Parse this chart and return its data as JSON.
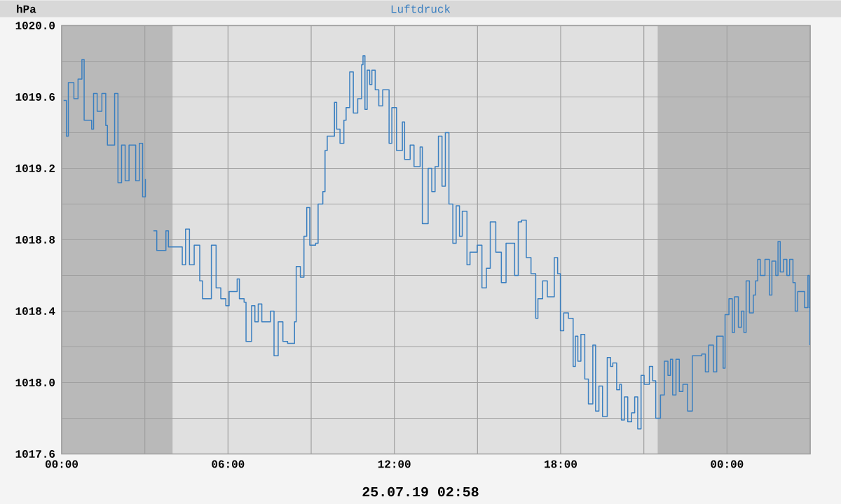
{
  "chart_data": {
    "type": "step",
    "title": "Luftdruck",
    "ylabel": "hPa",
    "annotations": [
      "25.07.19 02:58"
    ],
    "x": [
      0.07,
      0.17,
      0.24,
      0.44,
      0.59,
      0.73,
      0.81,
      1.08,
      1.15,
      1.28,
      1.45,
      1.59,
      1.65,
      1.91,
      2.03,
      2.16,
      2.29,
      2.43,
      2.67,
      2.8,
      2.92,
      3.02,
      3.15,
      3.31,
      3.43,
      3.76,
      3.85,
      4.19,
      4.35,
      4.47,
      4.61,
      4.78,
      4.98,
      5.08,
      5.4,
      5.57,
      5.74,
      5.92,
      6.04,
      6.33,
      6.41,
      6.58,
      6.65,
      6.85,
      6.97,
      7.09,
      7.22,
      7.53,
      7.66,
      7.81,
      7.98,
      8.15,
      8.4,
      8.46,
      8.61,
      8.74,
      8.84,
      8.95,
      9.16,
      9.25,
      9.42,
      9.5,
      9.58,
      9.72,
      9.84,
      9.92,
      10.04,
      10.18,
      10.26,
      10.39,
      10.52,
      10.68,
      10.82,
      10.87,
      10.94,
      11.02,
      11.11,
      11.19,
      11.31,
      11.44,
      11.58,
      11.81,
      11.91,
      12.08,
      12.29,
      12.37,
      12.57,
      12.71,
      12.93,
      13.01,
      13.22,
      13.35,
      13.47,
      13.59,
      13.72,
      13.84,
      13.97,
      14.11,
      14.23,
      14.35,
      14.45,
      14.62,
      14.73,
      14.99,
      15.16,
      15.32,
      15.46,
      15.66,
      15.86,
      16.03,
      16.34,
      16.47,
      16.59,
      16.76,
      16.93,
      17.1,
      17.18,
      17.35,
      17.52,
      17.77,
      17.89,
      17.99,
      18.11,
      18.28,
      18.45,
      18.53,
      18.62,
      18.73,
      18.87,
      19.0,
      19.16,
      19.26,
      19.38,
      19.51,
      19.68,
      19.8,
      19.88,
      20.02,
      20.13,
      20.19,
      20.3,
      20.42,
      20.56,
      20.67,
      20.78,
      20.9,
      21.01,
      21.2,
      21.32,
      21.43,
      21.6,
      21.74,
      21.87,
      21.96,
      22.04,
      22.16,
      22.28,
      22.41,
      22.58,
      22.75,
      23.09,
      23.22,
      23.34,
      23.51,
      23.63,
      23.76,
      23.86,
      23.93,
      24.07,
      24.19,
      24.27,
      24.41,
      24.52,
      24.61,
      24.69,
      24.81,
      24.95,
      25.03,
      25.11,
      25.2,
      25.37,
      25.53,
      25.62,
      25.76,
      25.84,
      25.92,
      26.04,
      26.16,
      26.26,
      26.38,
      26.46,
      26.55,
      26.72,
      26.8,
      26.92,
      26.97,
      26.99
    ],
    "series": [
      {
        "color": "#3a7fc0",
        "values": [
          1019.58,
          1019.38,
          1019.68,
          1019.59,
          1019.7,
          1019.81,
          1019.47,
          1019.42,
          1019.62,
          1019.52,
          1019.62,
          1019.44,
          1019.33,
          1019.62,
          1019.12,
          1019.33,
          1019.13,
          1019.33,
          1019.13,
          1019.34,
          1019.04,
          1019.14,
          null,
          1018.85,
          1018.74,
          1018.85,
          1018.76,
          1018.76,
          1018.66,
          1018.86,
          1018.66,
          1018.77,
          1018.57,
          1018.47,
          1018.77,
          1018.53,
          1018.47,
          1018.43,
          1018.51,
          1018.58,
          1018.47,
          1018.45,
          1018.23,
          1018.43,
          1018.34,
          1018.44,
          1018.34,
          1018.4,
          1018.15,
          1018.34,
          1018.23,
          1018.22,
          1018.34,
          1018.65,
          1018.59,
          1018.82,
          1018.98,
          1018.77,
          1018.78,
          1019.0,
          1019.07,
          1019.3,
          1019.38,
          1019.38,
          1019.57,
          1019.42,
          1019.34,
          1019.47,
          1019.54,
          1019.74,
          1019.51,
          1019.59,
          1019.78,
          1019.83,
          1019.53,
          1019.75,
          1019.67,
          1019.75,
          1019.64,
          1019.55,
          1019.64,
          1019.34,
          1019.54,
          1019.3,
          1019.46,
          1019.25,
          1019.33,
          1019.21,
          1019.32,
          1018.89,
          1019.2,
          1019.07,
          1019.21,
          1019.38,
          1019.1,
          1019.4,
          1019.0,
          1018.78,
          1018.99,
          1018.82,
          1018.96,
          1018.66,
          1018.73,
          1018.77,
          1018.53,
          1018.64,
          1018.9,
          1018.73,
          1018.56,
          1018.78,
          1018.6,
          1018.9,
          1018.91,
          1018.7,
          1018.61,
          1018.36,
          1018.47,
          1018.57,
          1018.48,
          1018.7,
          1018.61,
          1018.29,
          1018.39,
          1018.36,
          1018.09,
          1018.26,
          1018.12,
          1018.27,
          1018.02,
          1017.88,
          1018.21,
          1017.84,
          1017.98,
          1017.81,
          1018.14,
          1018.09,
          1018.11,
          1017.96,
          1017.99,
          1017.79,
          1017.92,
          1017.78,
          1017.83,
          1017.92,
          1017.74,
          1018.04,
          1017.99,
          1018.09,
          1018.01,
          1017.8,
          1017.93,
          1018.12,
          1018.04,
          1018.13,
          1017.93,
          1018.13,
          1017.95,
          1017.99,
          1017.84,
          1018.15,
          1018.16,
          1018.06,
          1018.21,
          1018.06,
          1018.26,
          1018.26,
          1018.08,
          1018.38,
          1018.47,
          1018.28,
          1018.48,
          1018.31,
          1018.4,
          1018.28,
          1018.57,
          1018.39,
          1018.49,
          1018.57,
          1018.69,
          1018.6,
          1018.69,
          1018.49,
          1018.68,
          1018.6,
          1018.79,
          1018.62,
          1018.69,
          1018.6,
          1018.69,
          1018.56,
          1018.4,
          1018.51,
          1018.51,
          1018.42,
          1018.6,
          1018.42,
          1018.21
        ]
      }
    ],
    "xlim": [
      0,
      27
    ],
    "xticks": [
      {
        "value": 0,
        "label": "00:00"
      },
      {
        "value": 3,
        "label": null
      },
      {
        "value": 6,
        "label": "06:00"
      },
      {
        "value": 9,
        "label": null
      },
      {
        "value": 12,
        "label": "12:00"
      },
      {
        "value": 15,
        "label": null
      },
      {
        "value": 18,
        "label": "18:00"
      },
      {
        "value": 21,
        "label": null
      },
      {
        "value": 24,
        "label": "00:00"
      },
      {
        "value": 27,
        "label": null
      }
    ],
    "ylim": [
      1017.6,
      1020.0
    ],
    "yticks": [
      1017.6,
      {
        "value": 1017.8,
        "label": null
      },
      {
        "value": 1018.0,
        "label": "1018.0"
      },
      {
        "value": 1018.2,
        "label": null
      },
      1018.4,
      {
        "value": 1018.6,
        "label": null
      },
      1018.8,
      {
        "value": 1019.0,
        "label": null
      },
      1019.2,
      {
        "value": 1019.4,
        "label": null
      },
      1019.6,
      {
        "value": 1019.8,
        "label": null
      },
      {
        "value": 1020.0,
        "label": "1020.0"
      }
    ],
    "bands": [
      {
        "axis": "x",
        "from": 0,
        "to": 4,
        "color": "#b9b9b9"
      },
      {
        "axis": "x",
        "from": 21.5,
        "to": 27,
        "color": "#b9b9b9"
      }
    ],
    "grid": true,
    "marker": "none",
    "line_style": "solid"
  }
}
